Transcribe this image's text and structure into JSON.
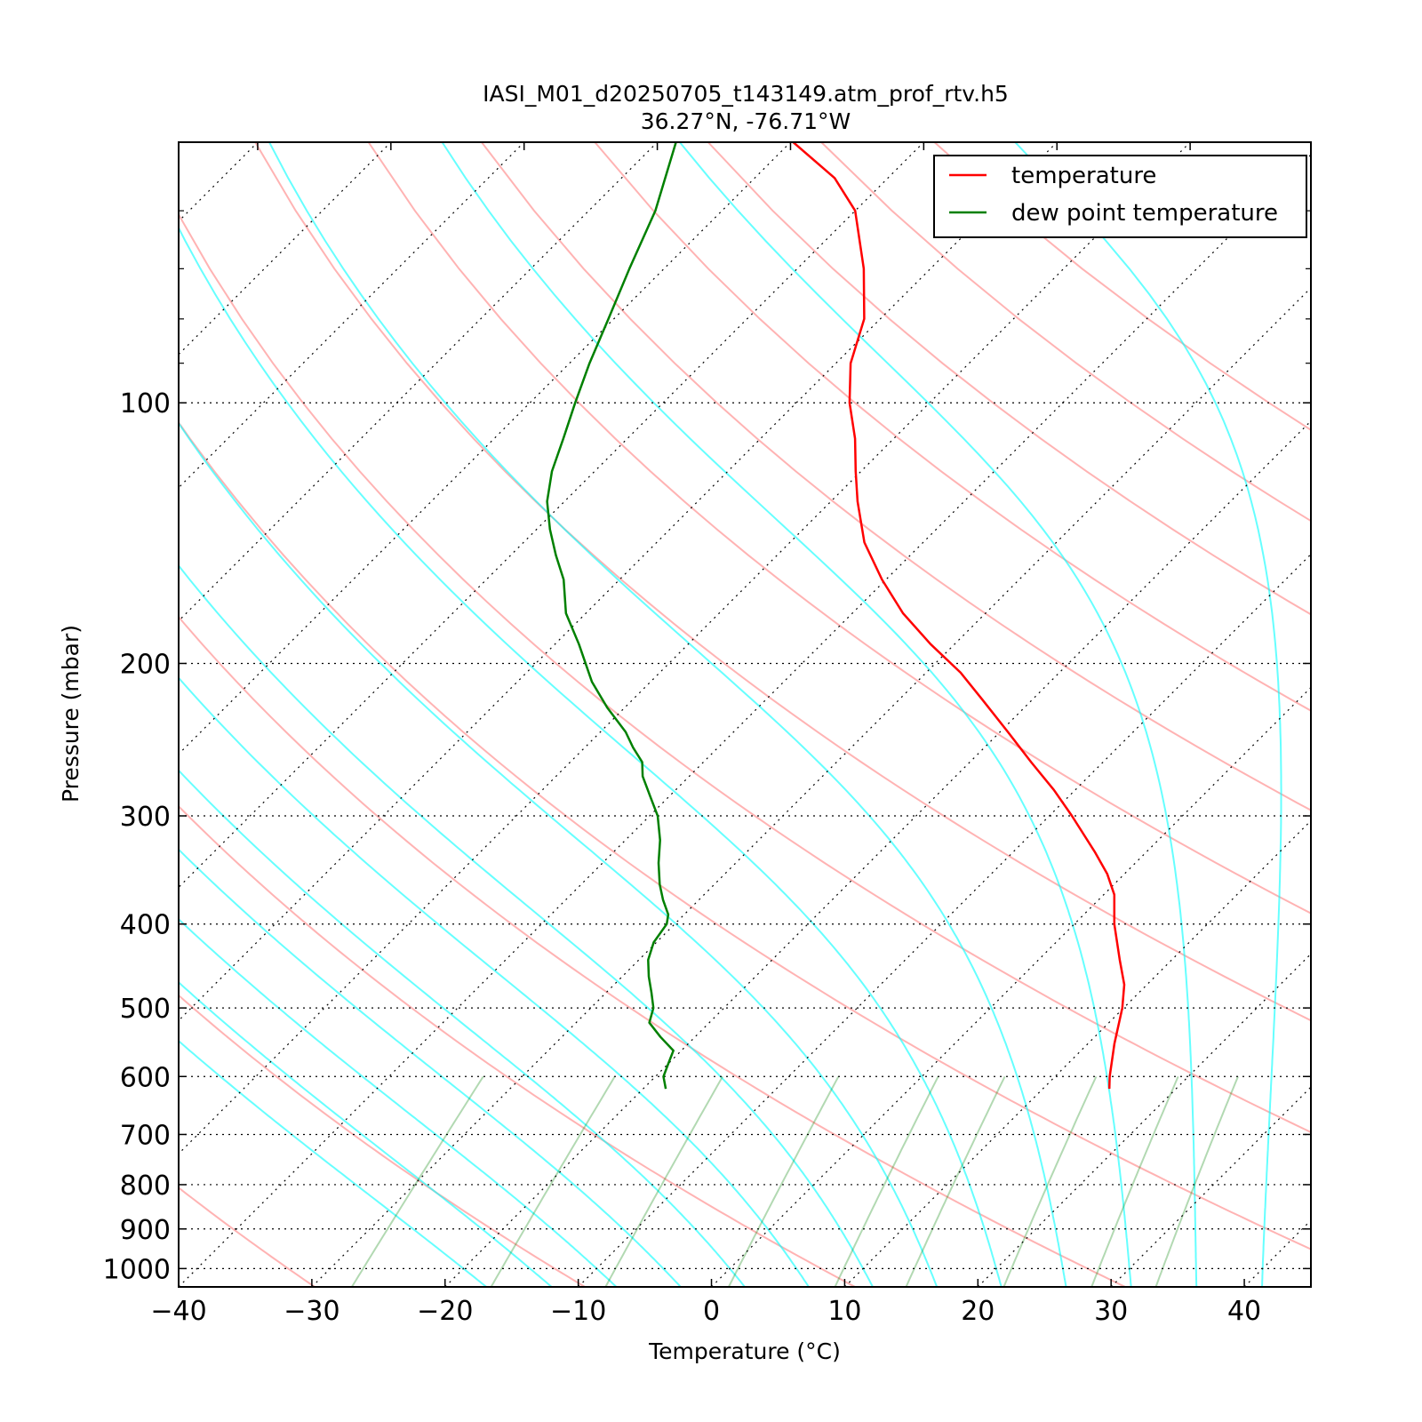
{
  "chart_data": {
    "type": "line",
    "title": "IASI_M01_d20250705_t143149.atm_prof_rtv.h5",
    "subtitle": "36.27°N, -76.71°W",
    "xlabel": "Temperature (°C)",
    "ylabel": "Pressure (mbar)",
    "xlim": [
      -40,
      45
    ],
    "ylim": [
      1050,
      50
    ],
    "y_scale": "log",
    "skew": "skew-T log-P diagram",
    "x_ticks": [
      -40,
      -30,
      -20,
      -10,
      0,
      10,
      20,
      30,
      40
    ],
    "x_tick_labels": [
      "−40",
      "−30",
      "−20",
      "−10",
      "0",
      "10",
      "20",
      "30",
      "40"
    ],
    "y_ticks": [
      100,
      200,
      300,
      400,
      500,
      600,
      700,
      800,
      900,
      1000
    ],
    "y_tick_labels": [
      "100",
      "200",
      "300",
      "400",
      "500",
      "600",
      "700",
      "800",
      "900",
      "1000"
    ],
    "grid": true,
    "legend_position": "top-right",
    "series": [
      {
        "name": "temperature",
        "color": "#ff0000",
        "points": [
          [
            620,
            15.0
          ],
          [
            600,
            14.1
          ],
          [
            550,
            12.0
          ],
          [
            500,
            9.9
          ],
          [
            470,
            8.3
          ],
          [
            440,
            6.1
          ],
          [
            400,
            3.0
          ],
          [
            370,
            0.8
          ],
          [
            350,
            -1.3
          ],
          [
            330,
            -3.9
          ],
          [
            300,
            -8.3
          ],
          [
            280,
            -11.6
          ],
          [
            260,
            -15.4
          ],
          [
            240,
            -19.4
          ],
          [
            220,
            -23.8
          ],
          [
            205,
            -27.4
          ],
          [
            190,
            -31.8
          ],
          [
            175,
            -36.2
          ],
          [
            160,
            -40.3
          ],
          [
            145,
            -44.4
          ],
          [
            130,
            -48.0
          ],
          [
            120,
            -50.4
          ],
          [
            110,
            -52.9
          ],
          [
            100,
            -56.0
          ],
          [
            90,
            -58.9
          ],
          [
            80,
            -61.2
          ],
          [
            70,
            -65.0
          ],
          [
            60,
            -70.0
          ],
          [
            55,
            -74.0
          ],
          [
            50,
            -79.8
          ]
        ]
      },
      {
        "name": "dew point temperature",
        "color": "#008000",
        "points": [
          [
            620,
            -18.3
          ],
          [
            600,
            -19.4
          ],
          [
            580,
            -20.0
          ],
          [
            560,
            -20.6
          ],
          [
            540,
            -22.6
          ],
          [
            520,
            -24.5
          ],
          [
            500,
            -25.3
          ],
          [
            480,
            -26.6
          ],
          [
            460,
            -28.0
          ],
          [
            440,
            -29.3
          ],
          [
            420,
            -30.2
          ],
          [
            400,
            -30.6
          ],
          [
            390,
            -31.2
          ],
          [
            375,
            -32.7
          ],
          [
            360,
            -34.1
          ],
          [
            340,
            -35.8
          ],
          [
            320,
            -37.4
          ],
          [
            300,
            -39.4
          ],
          [
            285,
            -41.4
          ],
          [
            270,
            -43.5
          ],
          [
            260,
            -44.6
          ],
          [
            250,
            -46.4
          ],
          [
            240,
            -48.1
          ],
          [
            225,
            -51.3
          ],
          [
            210,
            -54.4
          ],
          [
            190,
            -58.2
          ],
          [
            175,
            -61.5
          ],
          [
            160,
            -64.2
          ],
          [
            150,
            -66.6
          ],
          [
            140,
            -69.0
          ],
          [
            130,
            -71.3
          ],
          [
            120,
            -73.2
          ],
          [
            110,
            -74.8
          ],
          [
            100,
            -76.6
          ],
          [
            90,
            -78.5
          ],
          [
            80,
            -80.4
          ],
          [
            70,
            -82.6
          ],
          [
            60,
            -85.0
          ],
          [
            50,
            -88.6
          ]
        ]
      }
    ]
  }
}
